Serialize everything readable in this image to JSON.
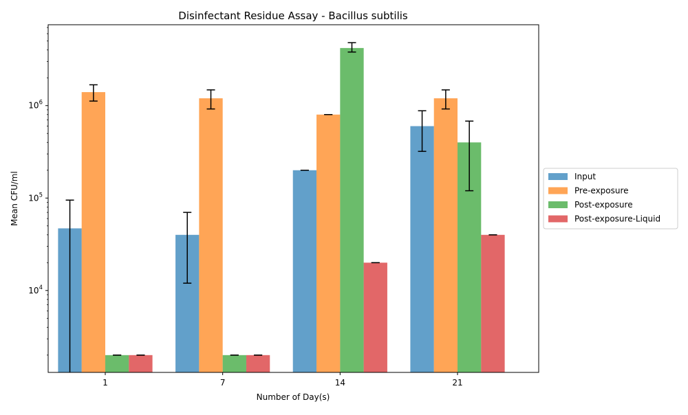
{
  "chart_data": {
    "type": "bar",
    "title": "Disinfectant Residue Assay - Bacillus subtilis",
    "xlabel": "Number of Day(s)",
    "ylabel": "Mean CFU/ml",
    "yscale": "log",
    "ylim": [
      1300,
      7500000
    ],
    "ytick_values": [
      10000,
      100000,
      1000000
    ],
    "ytick_bases": [
      "10",
      "10",
      "10"
    ],
    "ytick_exponents": [
      "4",
      "5",
      "6"
    ],
    "categories": [
      "1",
      "7",
      "14",
      "21"
    ],
    "legend_position": "right",
    "grid": false,
    "series": [
      {
        "name": "Input",
        "color": "#1f77b4",
        "values": [
          47000,
          40000,
          200000,
          600000
        ],
        "err_low": [
          1300,
          12000,
          200000,
          320000
        ],
        "err_high": [
          95000,
          70000,
          200000,
          880000
        ]
      },
      {
        "name": "Pre-exposure",
        "color": "#ff7f0e",
        "values": [
          1400000,
          1200000,
          800000,
          1200000
        ],
        "err_low": [
          1120000,
          920000,
          800000,
          920000
        ],
        "err_high": [
          1680000,
          1480000,
          800000,
          1480000
        ]
      },
      {
        "name": "Post-exposure",
        "color": "#2ca02c",
        "values": [
          2000,
          2000,
          4200000,
          400000
        ],
        "err_low": [
          2000,
          2000,
          3800000,
          120000
        ],
        "err_high": [
          2000,
          2000,
          4800000,
          680000
        ]
      },
      {
        "name": "Post-exposure-Liquid",
        "color": "#d62728",
        "values": [
          2000,
          2000,
          20000,
          40000
        ],
        "err_low": [
          2000,
          2000,
          20000,
          40000
        ],
        "err_high": [
          2000,
          2000,
          20000,
          40000
        ]
      }
    ]
  }
}
